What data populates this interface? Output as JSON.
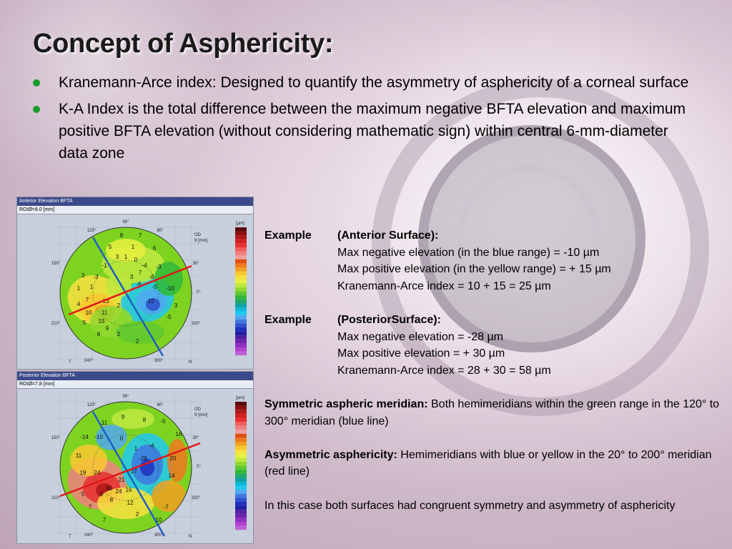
{
  "slide": {
    "title": "Concept of Asphericity:",
    "bullets": [
      "Kranemann-Arce index: Designed to quantify the asymmetry of asphericity of a corneal surface",
      "K-A Index is the total difference between the maximum negative BFTA elevation and maximum positive BFTA elevation (without considering mathematic sign) within central 6-mm-diameter data zone"
    ],
    "colors": {
      "bullet": "#1a9a2a",
      "blue_line": "#1f5fc4",
      "red_line": "#e01818"
    }
  },
  "maps": {
    "anterior": {
      "title": "Anterior Elevation BFTA",
      "roi": "ROIØ=8.0 [mm]",
      "od": "OD",
      "unit": "9 [mm]",
      "scale_unit": "[µm]",
      "t_label": "T",
      "n_label": "N",
      "angles": [
        "90°",
        "120°",
        "60°",
        "150°",
        "30°",
        "0°",
        "210°",
        "330°",
        "240°",
        "300°"
      ],
      "values": [
        "8",
        "7",
        "5",
        "3",
        "1",
        "-1",
        "-3",
        "1",
        "0",
        "6",
        "-4",
        "-3",
        "-8",
        "3",
        "1",
        "1",
        "-5",
        "-6",
        "-10",
        "4",
        "3",
        "7",
        "13",
        "11",
        "2",
        "10",
        "15",
        "5",
        "9",
        "8",
        "7",
        "3",
        "-10",
        "-5",
        "2",
        "2"
      ]
    },
    "posterior": {
      "title": "Posterior Elevation BFTA",
      "roi": "ROIØ=7.8 [mm]",
      "od": "OD",
      "unit": "9 [mm]",
      "scale_unit": "[µm]",
      "t_label": "T",
      "n_label": "N",
      "angles": [
        "90°",
        "120°",
        "60°",
        "150°",
        "30°",
        "0°",
        "210°",
        "330°",
        "240°",
        "300°"
      ],
      "values": [
        "9",
        "11",
        "8",
        "-5",
        "-14",
        "-10",
        "0",
        "16",
        "11",
        "1",
        "-4",
        "-28",
        "-17",
        "20",
        "19",
        "24",
        "21",
        "30",
        "24",
        "16",
        "6",
        "14",
        "5",
        "8",
        "12",
        "7",
        "2",
        "-7",
        "10",
        "7"
      ]
    }
  },
  "text": {
    "ex1_label": "Example",
    "ex1_head": "(Anterior Surface):",
    "ex1_lines": [
      "Max negative elevation (in the blue range) = -10 µm",
      "Max positive elevation (in the yellow range) = + 15 µm",
      "Kranemann-Arce index = 10 + 15 = 25 µm"
    ],
    "ex2_label": "Example",
    "ex2_head": "(PosteriorSurface):",
    "ex2_lines": [
      "Max negative elevation = -28 µm",
      "Max positive elevation = + 30 µm",
      "Kranemann-Arce index = 28 + 30 = 58 µm"
    ],
    "sym_bold": "Symmetric aspheric meridian:",
    "sym_text": " Both hemimeridians within the green range in the 120° to 300° meridian (blue line)",
    "asym_bold": "Asymmetric asphericity:",
    "asym_text": " Hemimeridians with blue or yellow in the 20° to 200° meridian (red line)",
    "conclusion": "In this case both surfaces had congruent symmetry and asymmetry of asphericity"
  }
}
